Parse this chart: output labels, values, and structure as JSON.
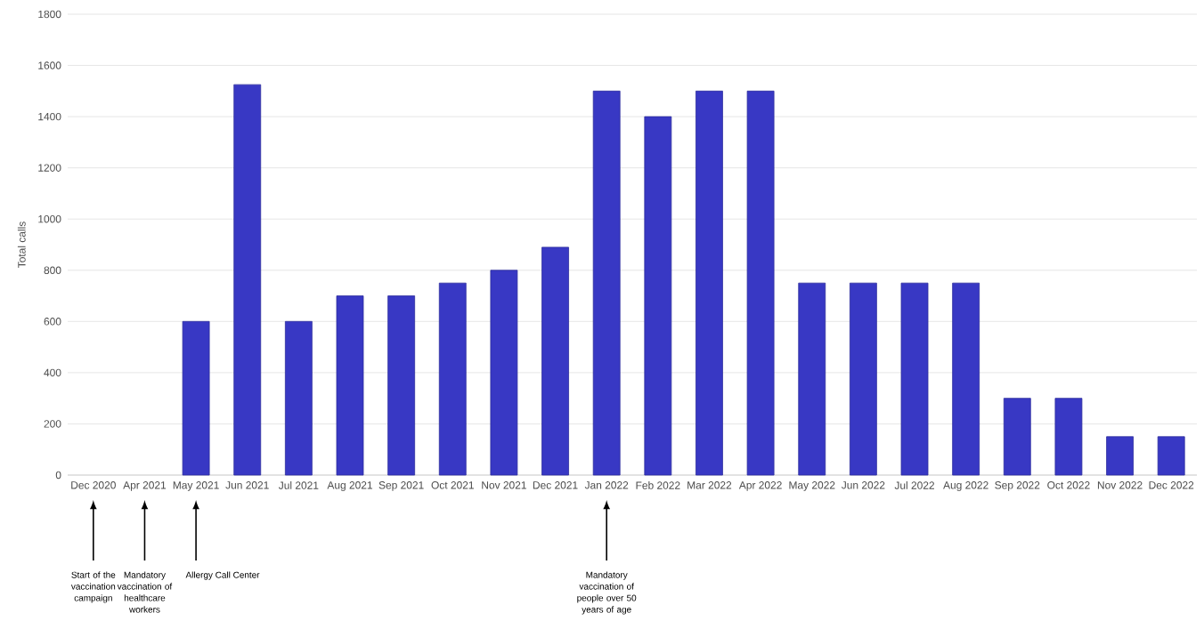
{
  "chart_data": {
    "type": "bar",
    "ylabel": "Total calls",
    "categories": [
      "Dec 2020",
      "Apr 2021",
      "May 2021",
      "Jun 2021",
      "Jul 2021",
      "Aug 2021",
      "Sep 2021",
      "Oct 2021",
      "Nov 2021",
      "Dec 2021",
      "Jan 2022",
      "Feb 2022",
      "Mar 2022",
      "Apr 2022",
      "May 2022",
      "Jun 2022",
      "Jul 2022",
      "Aug 2022",
      "Sep 2022",
      "Oct 2022",
      "Nov 2022",
      "Dec 2022"
    ],
    "values": [
      null,
      null,
      600,
      1525,
      600,
      700,
      700,
      750,
      800,
      890,
      1500,
      1400,
      1500,
      1500,
      750,
      750,
      750,
      750,
      300,
      300,
      150,
      150
    ],
    "color": "#3838c4",
    "ylim": [
      0,
      1800
    ],
    "yticks": [
      0,
      200,
      400,
      600,
      800,
      1000,
      1200,
      1400,
      1600,
      1800
    ],
    "grid": "y",
    "annotations": [
      "Start of the vaccination campaign",
      "Mandatory vaccination of healthcare workers",
      "Allergy Call Center",
      "Mandatory vaccination of people over 50 years of age"
    ]
  }
}
